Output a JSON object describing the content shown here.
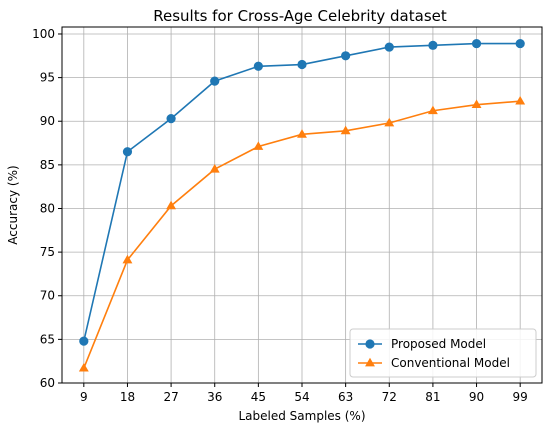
{
  "chart_data": {
    "type": "line",
    "title": "Results for Cross-Age Celebrity dataset",
    "xlabel": "Labeled Samples (%)",
    "ylabel": "Accuracy (%)",
    "x": [
      9,
      18,
      27,
      36,
      45,
      54,
      63,
      72,
      81,
      90,
      99
    ],
    "xticks": [
      "9",
      "18",
      "27",
      "36",
      "45",
      "54",
      "63",
      "72",
      "81",
      "90",
      "99"
    ],
    "yticks": [
      60,
      65,
      70,
      75,
      80,
      85,
      90,
      95,
      100
    ],
    "ylim": [
      60,
      100.8
    ],
    "xlim": [
      4.5,
      103.5
    ],
    "grid": true,
    "legend_position": "lower-right",
    "series": [
      {
        "name": "Proposed Model",
        "color": "#1f77b4",
        "marker": "circle",
        "values": [
          64.8,
          86.5,
          90.3,
          94.6,
          96.3,
          96.5,
          97.5,
          98.5,
          98.7,
          98.9,
          98.9
        ]
      },
      {
        "name": "Conventional Model",
        "color": "#ff7f0e",
        "marker": "triangle",
        "values": [
          61.7,
          74.1,
          80.3,
          84.5,
          87.1,
          88.5,
          88.9,
          89.8,
          91.2,
          91.9,
          92.3
        ]
      }
    ]
  }
}
